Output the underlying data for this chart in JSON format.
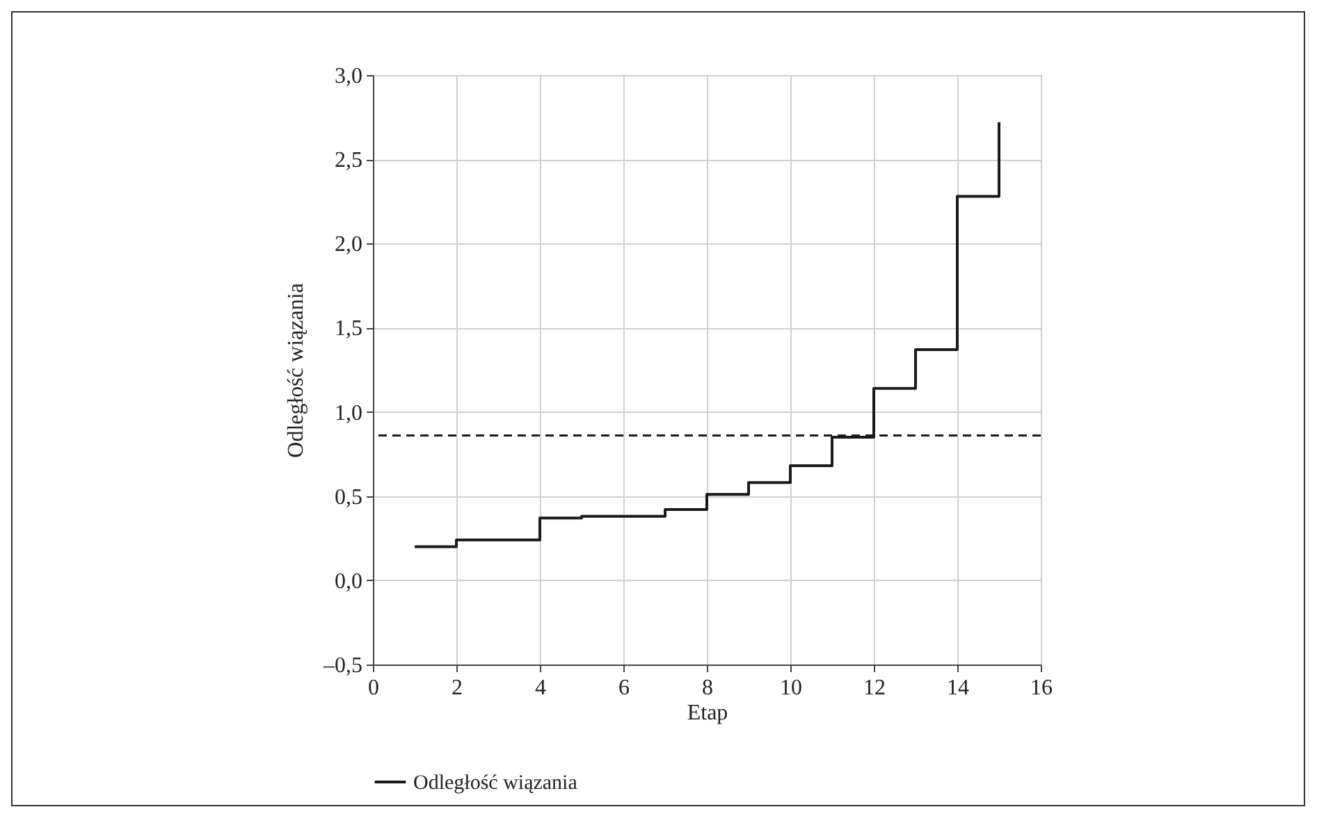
{
  "chart_data": {
    "type": "step",
    "xlabel": "Etap",
    "ylabel": "Odległość wiązania",
    "x": [
      1,
      2,
      3,
      4,
      5,
      6,
      7,
      8,
      9,
      10,
      11,
      12,
      13,
      14,
      15
    ],
    "series": [
      {
        "name": "Odległość wiązania",
        "color": "#1a1a1a",
        "values": [
          0.2,
          0.24,
          0.24,
          0.37,
          0.38,
          0.38,
          0.42,
          0.51,
          0.58,
          0.68,
          0.85,
          1.14,
          1.37,
          2.28,
          2.72
        ]
      }
    ],
    "xlim": [
      0,
      16
    ],
    "xticks": [
      0,
      2,
      4,
      6,
      8,
      10,
      12,
      14,
      16
    ],
    "ylim": [
      -0.5,
      3.0
    ],
    "yticks": [
      {
        "value": -0.5,
        "label": "–0,5"
      },
      {
        "value": 0,
        "label": "0,0"
      },
      {
        "value": 0.5,
        "label": "0,5"
      },
      {
        "value": 1.0,
        "label": "1,0"
      },
      {
        "value": 1.5,
        "label": "1,5"
      },
      {
        "value": 2.0,
        "label": "2,0"
      },
      {
        "value": 2.5,
        "label": "2,5"
      },
      {
        "value": 3.0,
        "label": "3,0"
      }
    ],
    "ref_lines": [
      {
        "axis": "y",
        "value": 0.86,
        "color": "#1a1a1a",
        "line_style": "dashed"
      }
    ],
    "grid": true,
    "legend": "bottom"
  }
}
